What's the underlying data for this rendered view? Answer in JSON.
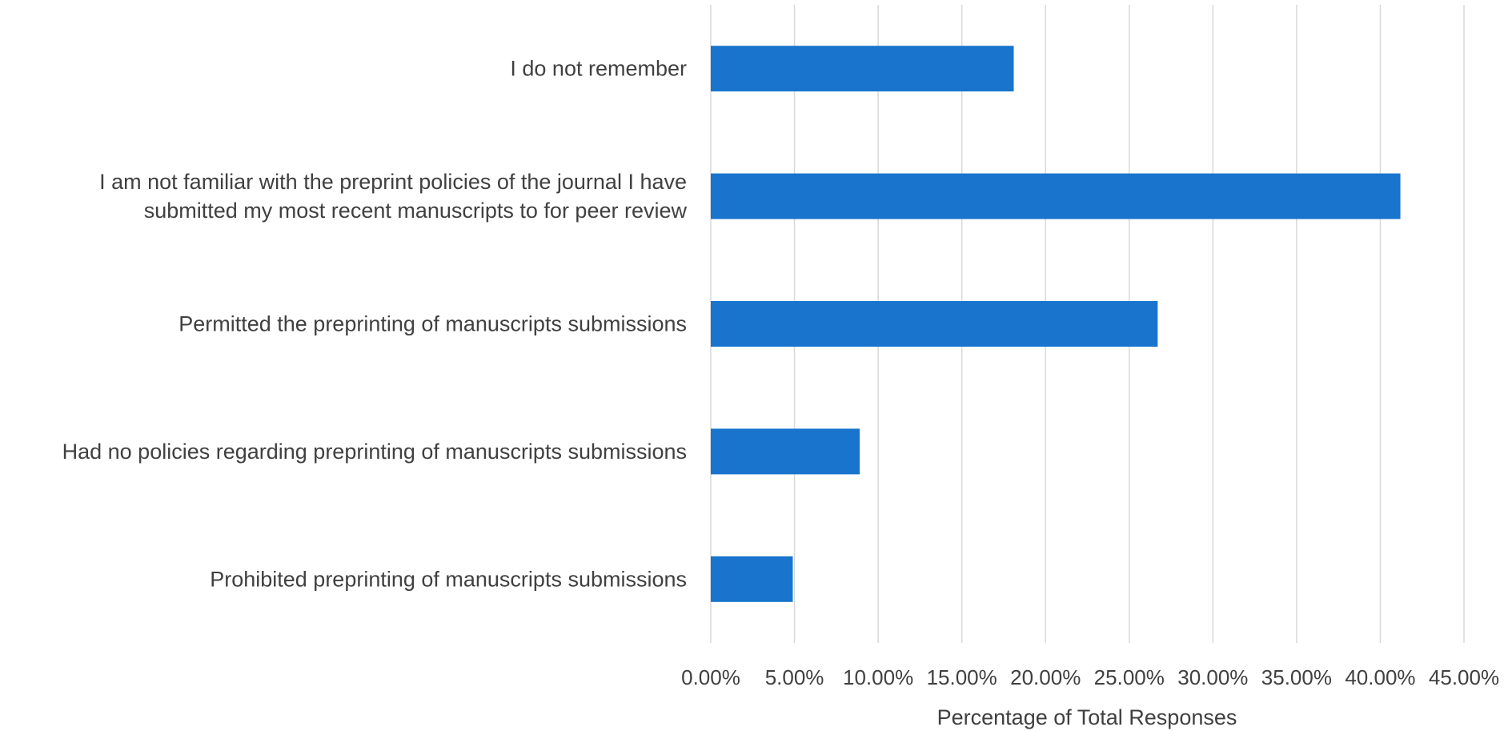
{
  "chart_data": {
    "type": "bar",
    "orientation": "horizontal",
    "title": "",
    "xlabel": "Percentage of Total Responses",
    "ylabel": "",
    "categories": [
      [
        "I do not remember"
      ],
      [
        "I am not familiar with the preprint policies of the journal I have",
        "submitted my most recent manuscripts to for peer review"
      ],
      [
        "Permitted the preprinting of manuscripts submissions"
      ],
      [
        "Had no policies regarding preprinting of manuscripts submissions"
      ],
      [
        "Prohibited preprinting of manuscripts submissions"
      ]
    ],
    "values": [
      18.1,
      41.2,
      26.7,
      8.9,
      4.9
    ],
    "xlim": [
      0,
      45
    ],
    "x_ticks": [
      "0.00%",
      "5.00%",
      "10.00%",
      "15.00%",
      "20.00%",
      "25.00%",
      "30.00%",
      "35.00%",
      "40.00%",
      "45.00%"
    ],
    "grid": "vertical",
    "legend": "none",
    "bar_color": "#1874CD"
  }
}
